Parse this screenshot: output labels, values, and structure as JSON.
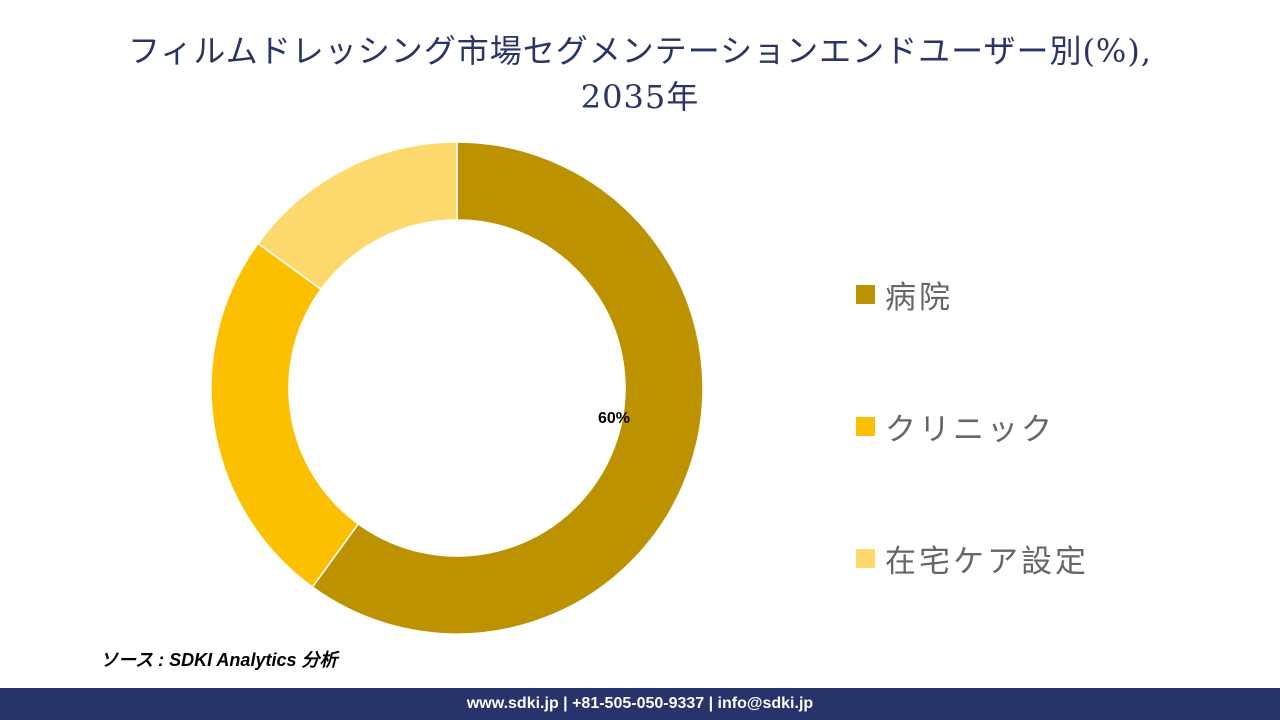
{
  "header": {
    "title_line1": "フィルムドレッシング市場セグメンテーションエンドユーザー別(%),",
    "title_line2": "2035年"
  },
  "chart_data": {
    "type": "pie",
    "subtype": "donut",
    "title": "フィルムドレッシング市場セグメンテーションエンドユーザー別(%), 2035年",
    "categories": [
      "病院",
      "クリニック",
      "在宅ケア設定"
    ],
    "values": [
      60,
      25,
      15
    ],
    "unit": "%",
    "colors": [
      "#bd9200",
      "#fcc000",
      "#fdd86c"
    ],
    "data_labels": [
      {
        "category": "病院",
        "text": "60%"
      }
    ],
    "legend_position": "right",
    "start_angle_deg": 0,
    "direction": "clockwise"
  },
  "legend": {
    "items": [
      {
        "label": "病院",
        "color": "#bd9200"
      },
      {
        "label": "クリニック",
        "color": "#fcc000"
      },
      {
        "label": "在宅ケア設定",
        "color": "#fdd86c"
      }
    ]
  },
  "labels": {
    "hospital_pct": "60%"
  },
  "source": {
    "text": "ソース : SDKI Analytics 分析"
  },
  "footer": {
    "contact": "www.sdki.jp | +81-505-050-9337 | info@sdki.jp"
  }
}
